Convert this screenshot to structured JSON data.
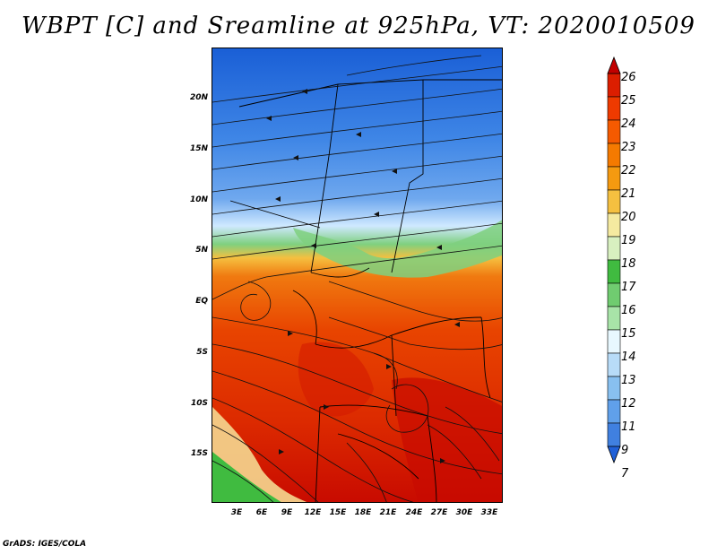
{
  "title": "WBPT [C] and Sreamline at 925hPa, VT: 2020010509",
  "footer": "GrADS: IGES/COLA",
  "lat_labels": [
    "20N",
    "15N",
    "10N",
    "5N",
    "EQ",
    "5S",
    "10S",
    "15S"
  ],
  "lon_labels": [
    "3E",
    "6E",
    "9E",
    "12E",
    "15E",
    "18E",
    "21E",
    "24E",
    "27E",
    "30E",
    "33E"
  ],
  "colorbar": {
    "labels": [
      "26",
      "25",
      "24",
      "23",
      "22",
      "21",
      "20",
      "19",
      "18",
      "17",
      "16",
      "15",
      "14",
      "13",
      "12",
      "11",
      "9",
      "7"
    ],
    "colors": [
      "#c20000",
      "#dc1e00",
      "#ee3a00",
      "#f55a00",
      "#f57a00",
      "#f59a10",
      "#f5c040",
      "#f5eaa0",
      "#d8f0c0",
      "#40bb40",
      "#70cc70",
      "#a8e4a8",
      "#e8f8ff",
      "#b8dcf8",
      "#88c0f0",
      "#60a0ea",
      "#4080e0",
      "#2060d8"
    ]
  },
  "colors": {
    "cold": "#2266d8",
    "warm": "#e63c00",
    "hot": "#c40000",
    "green": "#40bb40"
  }
}
